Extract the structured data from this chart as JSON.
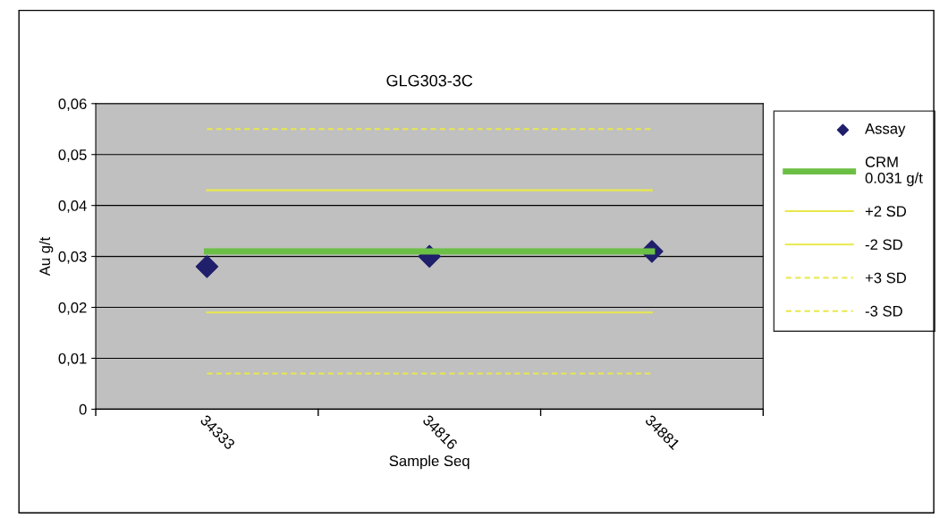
{
  "chart_data": {
    "type": "line",
    "title": "GLG303-3C",
    "xlabel": "Sample Seq",
    "ylabel": "Au g/t",
    "categories": [
      "34333",
      "34816",
      "34881"
    ],
    "series": [
      {
        "name": "Assay",
        "type": "scatter",
        "marker": "diamond",
        "color": "#1f1f6b",
        "values": [
          0.028,
          0.03,
          0.031
        ]
      },
      {
        "name": "CRM\n0.031 g/t",
        "color": "#6cbf45",
        "values": [
          0.031,
          0.031,
          0.031
        ]
      },
      {
        "name": "+2 SD",
        "color": "#e8e84c",
        "values": [
          0.043,
          0.043,
          0.043
        ]
      },
      {
        "name": "-2 SD",
        "color": "#e8e84c",
        "values": [
          0.019,
          0.019,
          0.019
        ]
      },
      {
        "name": "+3 SD",
        "color": "#e8e84c",
        "line_style": "dashed",
        "values": [
          0.055,
          0.055,
          0.055
        ]
      },
      {
        "name": "-3 SD",
        "color": "#e8e84c",
        "line_style": "dashed",
        "values": [
          0.007,
          0.007,
          0.007
        ]
      }
    ],
    "ylim": [
      0,
      0.06
    ],
    "yticks": [
      {
        "value": 0,
        "label": "0"
      },
      {
        "value": 0.01,
        "label": "0,01"
      },
      {
        "value": 0.02,
        "label": "0,02"
      },
      {
        "value": 0.03,
        "label": "0,03"
      },
      {
        "value": 0.04,
        "label": "0,04"
      },
      {
        "value": 0.05,
        "label": "0,05"
      },
      {
        "value": 0.06,
        "label": "0,06"
      }
    ],
    "grid": "y",
    "legend": "right"
  }
}
